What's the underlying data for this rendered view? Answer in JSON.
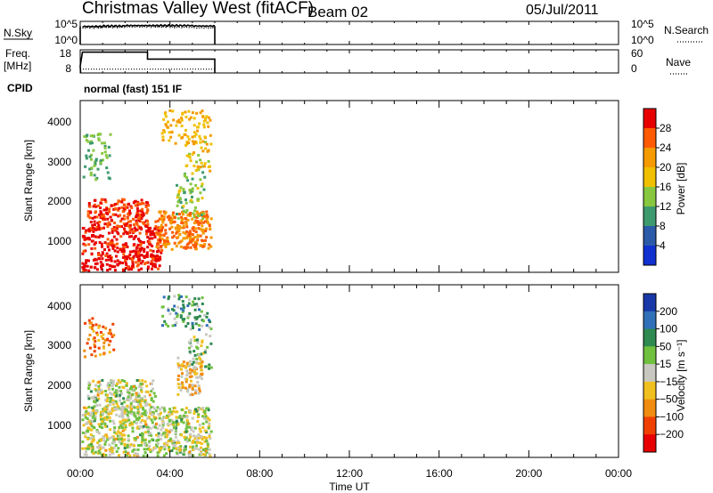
{
  "header": {
    "station": "Christmas Valley West (fitACF)",
    "beam": "Beam 02",
    "date": "05/Jul/2011"
  },
  "nsky_panel": {
    "left_label": "N.Sky",
    "left_ticks": [
      "10^5",
      "10^0"
    ],
    "right_ticks": [
      "10^5",
      "10^0"
    ],
    "right_label": "N.Search"
  },
  "freq_panel": {
    "left_label_line1": "Freq.",
    "left_label_line2": "[MHz]",
    "left_ticks": [
      "18",
      "8"
    ],
    "right_ticks": [
      "60",
      "0"
    ],
    "right_label": "Nave"
  },
  "cpid": {
    "label": "CPID",
    "program": "normal (fast) 151 IF"
  },
  "time_axis": {
    "label": "Time UT",
    "ticks": [
      "00:00",
      "04:00",
      "08:00",
      "12:00",
      "16:00",
      "20:00",
      "00:00"
    ]
  },
  "power_panel": {
    "ylabel": "Slant Range [km]",
    "yticks": [
      "4000",
      "3000",
      "2000",
      "1000"
    ],
    "colorbar_label": "Power [dB]",
    "colorbar_ticks": [
      "28",
      "24",
      "20",
      "16",
      "12",
      "8",
      "4"
    ],
    "colors": [
      "#e80000",
      "#ff5a00",
      "#f59a00",
      "#f0c000",
      "#88c840",
      "#3c9a6e",
      "#2a5aa8",
      "#1030d0"
    ]
  },
  "velocity_panel": {
    "ylabel": "Slant Range [km]",
    "yticks": [
      "4000",
      "3000",
      "2000",
      "1000"
    ],
    "colorbar_label": "Velocity [m s⁻¹]",
    "colorbar_ticks": [
      "200",
      "100",
      "50",
      "15",
      "−15",
      "−50",
      "−100",
      "−200"
    ],
    "colors": [
      "#1838a8",
      "#3070b8",
      "#2e8a50",
      "#70c040",
      "#c8c8c0",
      "#f0c020",
      "#f08c10",
      "#f04000",
      "#e80000"
    ]
  },
  "chart_data": [
    {
      "type": "line",
      "title": "N.Sky / N.Search",
      "x_unit": "hours UT",
      "xlim": [
        0,
        24
      ],
      "ylim_log10": [
        0,
        5
      ],
      "series": [
        {
          "name": "N.Sky",
          "x": [
            0,
            0.1,
            1,
            2,
            3,
            4,
            5,
            6
          ],
          "log10_values": [
            3.3,
            3.9,
            4.0,
            4.1,
            4.1,
            4.1,
            4.0,
            4.0
          ]
        },
        {
          "name": "N.Search",
          "x": [
            0,
            0.1,
            1,
            2,
            3,
            4,
            5,
            6
          ],
          "log10_values": [
            3.0,
            3.6,
            3.7,
            3.8,
            3.8,
            3.7,
            3.6,
            3.6
          ]
        }
      ]
    },
    {
      "type": "line",
      "title": "Freq. / Nave",
      "x_unit": "hours UT",
      "xlim": [
        0,
        24
      ],
      "ylim": [
        8,
        18
      ],
      "y2lim": [
        0,
        60
      ],
      "series": [
        {
          "name": "Freq. [MHz]",
          "x": [
            0,
            0.1,
            3.0,
            3.0,
            6.0
          ],
          "values": [
            11,
            17,
            17,
            14,
            14
          ]
        },
        {
          "name": "Nave",
          "x": [
            0,
            6.0
          ],
          "values": [
            10,
            10
          ]
        }
      ]
    },
    {
      "type": "heatmap",
      "title": "Power [dB]",
      "x_unit": "hours UT",
      "xlim": [
        0,
        24
      ],
      "ylim": [
        200,
        4600
      ],
      "data_extent_hours": [
        0,
        6
      ],
      "clim": [
        0,
        32
      ],
      "regions": [
        {
          "x": [
            0.05,
            3.6
          ],
          "y": [
            250,
            1400
          ],
          "value": 30
        },
        {
          "x": [
            0.3,
            3.0
          ],
          "y": [
            1300,
            2100
          ],
          "value": 28
        },
        {
          "x": [
            3.3,
            5.8
          ],
          "y": [
            800,
            1800
          ],
          "value": 24
        },
        {
          "x": [
            4.2,
            5.5
          ],
          "y": [
            1600,
            2800
          ],
          "value": 14
        },
        {
          "x": [
            4.6,
            5.8
          ],
          "y": [
            2800,
            3600
          ],
          "value": 18
        },
        {
          "x": [
            0.1,
            1.3
          ],
          "y": [
            2600,
            3800
          ],
          "value": 12
        },
        {
          "x": [
            3.6,
            5.8
          ],
          "y": [
            3500,
            4400
          ],
          "value": 20
        }
      ]
    },
    {
      "type": "heatmap",
      "title": "Velocity [m s⁻¹]",
      "x_unit": "hours UT",
      "xlim": [
        0,
        24
      ],
      "ylim": [
        200,
        4600
      ],
      "data_extent_hours": [
        0,
        6
      ],
      "clim": [
        -250,
        250
      ],
      "regions": [
        {
          "x": [
            0.05,
            5.8
          ],
          "y": [
            250,
            1500
          ],
          "value": 0
        },
        {
          "x": [
            0.3,
            3.3
          ],
          "y": [
            1300,
            2200
          ],
          "value": 0
        },
        {
          "x": [
            4.3,
            5.4
          ],
          "y": [
            1800,
            2800
          ],
          "value": -40
        },
        {
          "x": [
            4.8,
            5.8
          ],
          "y": [
            2400,
            3400
          ],
          "value": 30
        },
        {
          "x": [
            0.1,
            1.5
          ],
          "y": [
            2800,
            3800
          ],
          "value": -80
        },
        {
          "x": [
            3.6,
            5.8
          ],
          "y": [
            3500,
            4400
          ],
          "value": 60
        }
      ]
    }
  ]
}
